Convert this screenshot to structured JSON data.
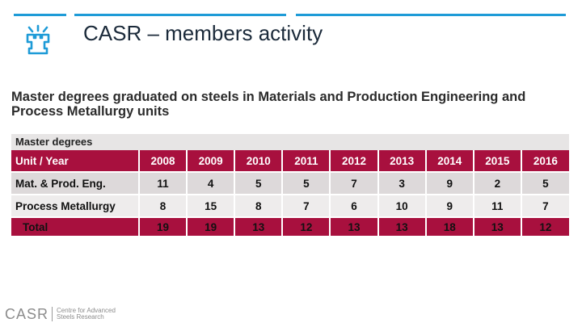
{
  "slide": {
    "title": "CASR – members activity",
    "heading": "Master degrees graduated on steels in Materials and Production Engineering and Process Metallurgy units"
  },
  "table": {
    "caption": "Master degrees",
    "header_label": "Unit / Year",
    "years": [
      "2008",
      "2009",
      "2010",
      "2011",
      "2012",
      "2013",
      "2014",
      "2015",
      "2016"
    ],
    "rows": [
      {
        "label": "Mat. & Prod. Eng.",
        "values": [
          "11",
          "4",
          "5",
          "5",
          "7",
          "3",
          "9",
          "2",
          "5"
        ]
      },
      {
        "label": "Process Metallurgy",
        "values": [
          "8",
          "15",
          "8",
          "7",
          "6",
          "10",
          "9",
          "11",
          "7"
        ]
      },
      {
        "label": "Total",
        "values": [
          "19",
          "19",
          "13",
          "12",
          "13",
          "13",
          "18",
          "13",
          "12"
        ]
      }
    ]
  },
  "footer": {
    "brand": "CASR",
    "sub_line1": "Centre for Advanced",
    "sub_line2": "Steels Research"
  },
  "colors": {
    "accent_blue": "#1e9bd7",
    "table_red": "#a8103e"
  },
  "icons": {
    "logo": "university-logo-icon"
  }
}
